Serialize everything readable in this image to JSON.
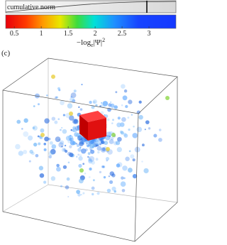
{
  "panel_label": "(c)",
  "cumulative_label": "cumulative norm",
  "colorbar": {
    "range": [
      0.34,
      3.5
    ],
    "ticks": [
      0.5,
      1,
      1.5,
      2,
      2.5,
      3
    ],
    "label": {
      "prefix": "−log",
      "sub": "ε",
      "body": "|Ψ|",
      "sup": "2"
    }
  }
}
